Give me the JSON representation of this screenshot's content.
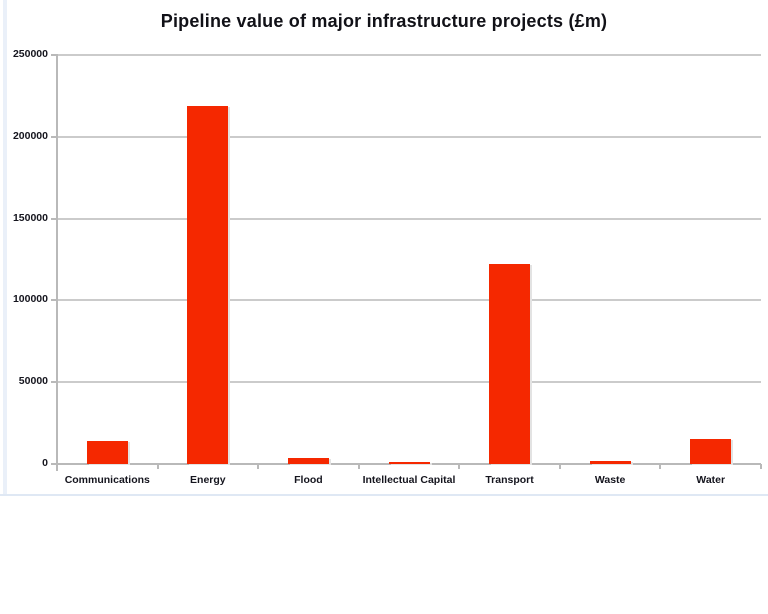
{
  "chart": {
    "title": "Pipeline value of major infrastructure projects (£m)"
  },
  "chart_data": {
    "type": "bar",
    "title": "Pipeline value of major infrastructure projects (£m)",
    "categories": [
      "Communications",
      "Energy",
      "Flood",
      "Intellectual Capital",
      "Transport",
      "Waste",
      "Water"
    ],
    "values": [
      14000,
      219000,
      3500,
      1000,
      122000,
      2000,
      15000
    ],
    "xlabel": "",
    "ylabel": "",
    "ylim": [
      0,
      250000
    ],
    "ytick_interval": 50000,
    "ytick_labels": [
      "0",
      "50000",
      "100000",
      "150000",
      "200000",
      "250000"
    ],
    "grid": true,
    "legend_position": "none",
    "colors": {
      "bar": "#f52800",
      "gridline": "#cbcbcb",
      "axis": "#b9b9b9",
      "text": "#15151e",
      "title_text": "#111117",
      "sheet_edge": "#e7eef8"
    }
  }
}
